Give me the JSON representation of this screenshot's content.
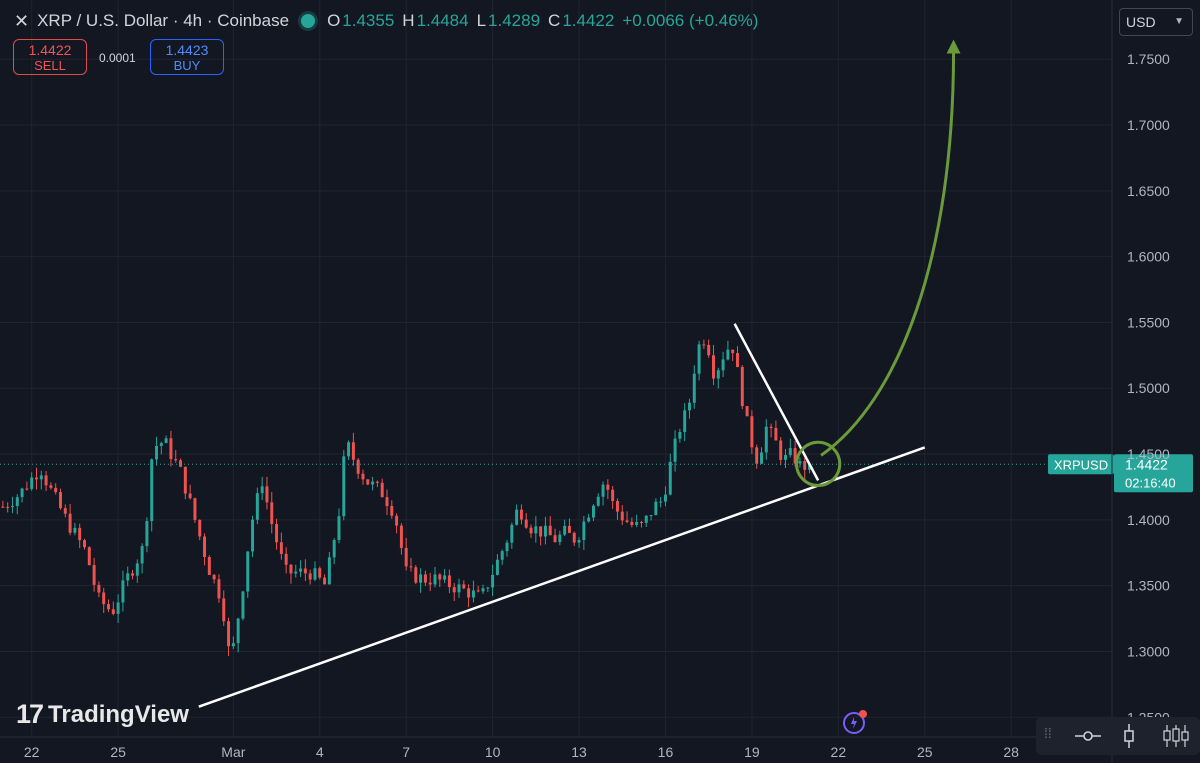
{
  "header": {
    "close_glyph": "✕",
    "symbol_title": "XRP / U.S. Dollar · 4h · Coinbase",
    "o_label": "O",
    "o_value": "1.4355",
    "h_label": "H",
    "h_value": "1.4484",
    "l_label": "L",
    "l_value": "1.4289",
    "c_label": "C",
    "c_value": "1.4422",
    "change": "+0.0066 (+0.46%)"
  },
  "trade": {
    "sell_price": "1.4422",
    "sell_label": "SELL",
    "spread": "0.0001",
    "buy_price": "1.4423",
    "buy_label": "BUY"
  },
  "currency": {
    "label": "USD",
    "icon": "chevron-down-icon"
  },
  "branding": {
    "logo_text": "TradingView",
    "logo_mark": "17"
  },
  "colors": {
    "background": "#131722",
    "up": "#26a69a",
    "down": "#ef5350",
    "grid": "#1f2430",
    "annotation": "#6a9a3a"
  },
  "chart_data": {
    "type": "candlestick",
    "symbol": "XRPUSD",
    "interval": "4h",
    "y_ticks": [
      1.25,
      1.3,
      1.35,
      1.4,
      1.45,
      1.5,
      1.55,
      1.6,
      1.65,
      1.7,
      1.75
    ],
    "y_tick_labels": [
      "1.2500",
      "1.3000",
      "1.3500",
      "1.4000",
      "1.4500",
      "1.5000",
      "1.5500",
      "1.6000",
      "1.6500",
      "1.7000",
      "1.7500"
    ],
    "x_tick_labels": [
      "22",
      "25",
      "Mar",
      "4",
      "7",
      "10",
      "13",
      "16",
      "19",
      "22",
      "25",
      "28"
    ],
    "x_tick_days": [
      22,
      25,
      29,
      32,
      35,
      38,
      41,
      44,
      47,
      50,
      53,
      56
    ],
    "x_range_days": [
      20.9,
      59.5
    ],
    "ylim": [
      1.235,
      1.795
    ],
    "last_price": 1.4422,
    "last_label": "1.4422",
    "price_tag": "XRPUSD",
    "countdown": "02:16:40",
    "checkpoints": [
      [
        21.0,
        1.41
      ],
      [
        21.6,
        1.42
      ],
      [
        22.3,
        1.44
      ],
      [
        22.6,
        1.425
      ],
      [
        23.2,
        1.4
      ],
      [
        23.9,
        1.375
      ],
      [
        24.3,
        1.34
      ],
      [
        24.8,
        1.33
      ],
      [
        25.3,
        1.355
      ],
      [
        25.9,
        1.38
      ],
      [
        26.2,
        1.455
      ],
      [
        26.6,
        1.46
      ],
      [
        27.2,
        1.435
      ],
      [
        27.6,
        1.405
      ],
      [
        28.2,
        1.36
      ],
      [
        28.6,
        1.34
      ],
      [
        28.9,
        1.29
      ],
      [
        29.3,
        1.345
      ],
      [
        29.6,
        1.395
      ],
      [
        30.0,
        1.43
      ],
      [
        30.3,
        1.4
      ],
      [
        30.8,
        1.36
      ],
      [
        31.3,
        1.36
      ],
      [
        31.7,
        1.36
      ],
      [
        32.2,
        1.35
      ],
      [
        32.7,
        1.41
      ],
      [
        32.9,
        1.46
      ],
      [
        33.2,
        1.445
      ],
      [
        33.6,
        1.43
      ],
      [
        34.2,
        1.42
      ],
      [
        34.6,
        1.405
      ],
      [
        35.0,
        1.36
      ],
      [
        35.6,
        1.355
      ],
      [
        36.0,
        1.355
      ],
      [
        36.6,
        1.35
      ],
      [
        37.2,
        1.345
      ],
      [
        37.6,
        1.34
      ],
      [
        38.1,
        1.365
      ],
      [
        38.5,
        1.385
      ],
      [
        38.9,
        1.41
      ],
      [
        39.3,
        1.395
      ],
      [
        39.8,
        1.39
      ],
      [
        40.2,
        1.385
      ],
      [
        40.5,
        1.39
      ],
      [
        40.9,
        1.385
      ],
      [
        41.2,
        1.4
      ],
      [
        41.6,
        1.42
      ],
      [
        41.9,
        1.43
      ],
      [
        42.2,
        1.41
      ],
      [
        42.6,
        1.4
      ],
      [
        42.9,
        1.395
      ],
      [
        43.2,
        1.395
      ],
      [
        43.6,
        1.41
      ],
      [
        43.9,
        1.415
      ],
      [
        44.2,
        1.445
      ],
      [
        44.5,
        1.47
      ],
      [
        44.8,
        1.485
      ],
      [
        45.1,
        1.53
      ],
      [
        45.4,
        1.54
      ],
      [
        45.7,
        1.51
      ],
      [
        46.0,
        1.525
      ],
      [
        46.3,
        1.535
      ],
      [
        46.6,
        1.5
      ],
      [
        46.9,
        1.465
      ],
      [
        47.2,
        1.445
      ],
      [
        47.5,
        1.47
      ],
      [
        47.8,
        1.46
      ],
      [
        48.1,
        1.445
      ],
      [
        48.4,
        1.45
      ],
      [
        48.7,
        1.44
      ],
      [
        49.0,
        1.4422
      ]
    ],
    "trendlines": [
      {
        "name": "support",
        "from": [
          27.8,
          1.258
        ],
        "to": [
          53.0,
          1.455
        ]
      },
      {
        "name": "resistance",
        "from": [
          46.4,
          1.549
        ],
        "to": [
          49.3,
          1.43
        ]
      }
    ],
    "breakout_circle": {
      "center": [
        49.3,
        1.4425
      ],
      "radius_days": 0.75
    },
    "projection_arrow": {
      "from": [
        49.4,
        1.449
      ],
      "via": [
        52.1,
        1.49
      ],
      "via2": [
        54.0,
        1.6
      ],
      "to": [
        54.0,
        1.765
      ]
    }
  }
}
